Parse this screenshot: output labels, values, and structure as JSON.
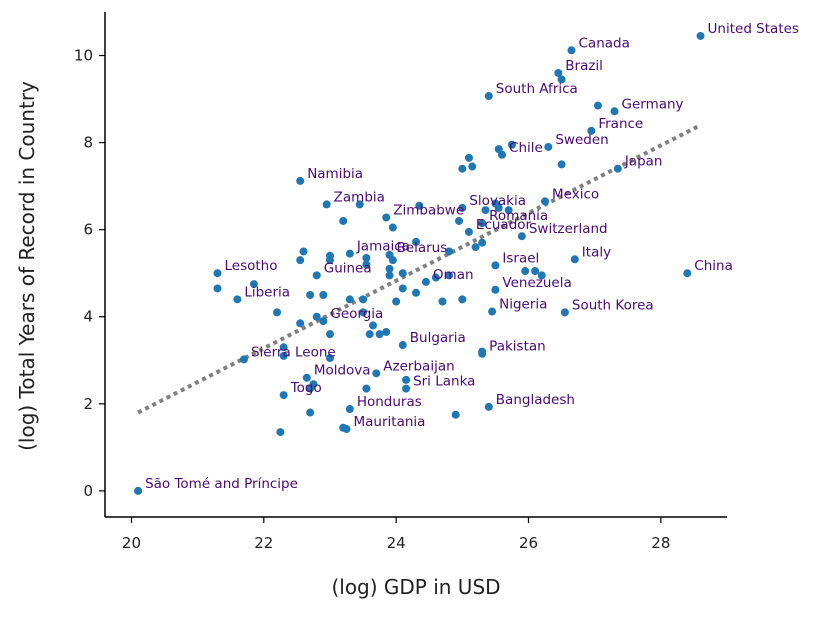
{
  "chart_data": {
    "type": "scatter",
    "xlabel": "(log) GDP in USD",
    "ylabel": "(log) Total Years of Record in Country",
    "xlim": [
      19.6,
      29.0
    ],
    "ylim": [
      -0.6,
      11.0
    ],
    "xticks": [
      20,
      22,
      24,
      26,
      28
    ],
    "yticks": [
      0,
      2,
      4,
      6,
      8,
      10
    ],
    "grid": false,
    "colors": {
      "point": "#1f77b4",
      "label": "#4b0a73",
      "trend": "#808080",
      "axis": "#000000"
    },
    "trend_line": {
      "style": "dotted",
      "x": [
        20.1,
        28.6
      ],
      "y": [
        1.8,
        8.4
      ]
    },
    "points": [
      {
        "x": 28.6,
        "y": 10.45,
        "label": "United States"
      },
      {
        "x": 26.65,
        "y": 10.12,
        "label": "Canada"
      },
      {
        "x": 26.45,
        "y": 9.6,
        "label": "Brazil"
      },
      {
        "x": 25.4,
        "y": 9.07,
        "label": "South Africa"
      },
      {
        "x": 27.3,
        "y": 8.72,
        "label": "Germany"
      },
      {
        "x": 26.95,
        "y": 8.27,
        "label": "France"
      },
      {
        "x": 26.3,
        "y": 7.9,
        "label": "Sweden"
      },
      {
        "x": 25.6,
        "y": 7.72,
        "label": "Chile"
      },
      {
        "x": 27.35,
        "y": 7.4,
        "label": "Japan"
      },
      {
        "x": 22.55,
        "y": 7.12,
        "label": "Namibia"
      },
      {
        "x": 26.25,
        "y": 6.65,
        "label": "Mexico"
      },
      {
        "x": 22.95,
        "y": 6.58,
        "label": "Zambia"
      },
      {
        "x": 25.0,
        "y": 6.5,
        "label": "Slovakia"
      },
      {
        "x": 23.85,
        "y": 6.28,
        "label": "Zimbabwe"
      },
      {
        "x": 25.3,
        "y": 6.15,
        "label": "Romania"
      },
      {
        "x": 25.9,
        "y": 5.85,
        "label": "Switzerland"
      },
      {
        "x": 25.1,
        "y": 5.95,
        "label": "Ecuador"
      },
      {
        "x": 23.3,
        "y": 5.45,
        "label": "Jamaica"
      },
      {
        "x": 23.9,
        "y": 5.42,
        "label": "Belarus"
      },
      {
        "x": 26.7,
        "y": 5.32,
        "label": "Italy"
      },
      {
        "x": 28.4,
        "y": 5.0,
        "label": "China"
      },
      {
        "x": 25.5,
        "y": 5.18,
        "label": "Israel"
      },
      {
        "x": 21.3,
        "y": 5.0,
        "label": "Lesotho"
      },
      {
        "x": 22.8,
        "y": 4.95,
        "label": "Guinea"
      },
      {
        "x": 24.45,
        "y": 4.8,
        "label": "Oman"
      },
      {
        "x": 25.5,
        "y": 4.62,
        "label": "Venezuela"
      },
      {
        "x": 21.6,
        "y": 4.4,
        "label": "Liberia"
      },
      {
        "x": 25.45,
        "y": 4.12,
        "label": "Nigeria"
      },
      {
        "x": 26.55,
        "y": 4.1,
        "label": "South Korea"
      },
      {
        "x": 22.9,
        "y": 3.9,
        "label": "Georgia"
      },
      {
        "x": 24.1,
        "y": 3.35,
        "label": "Bulgaria"
      },
      {
        "x": 25.3,
        "y": 3.15,
        "label": "Pakistan"
      },
      {
        "x": 21.7,
        "y": 3.02,
        "label": "Sierra Leone"
      },
      {
        "x": 23.7,
        "y": 2.7,
        "label": "Azerbaijan"
      },
      {
        "x": 22.65,
        "y": 2.6,
        "label": "Moldova"
      },
      {
        "x": 24.15,
        "y": 2.35,
        "label": "Sri Lanka"
      },
      {
        "x": 22.3,
        "y": 2.2,
        "label": "Togo"
      },
      {
        "x": 25.4,
        "y": 1.93,
        "label": "Bangladesh"
      },
      {
        "x": 23.3,
        "y": 1.88,
        "label": "Honduras"
      },
      {
        "x": 23.25,
        "y": 1.42,
        "label": "Mauritania"
      },
      {
        "x": 20.1,
        "y": 0.0,
        "label": "São Tomé and Príncipe"
      },
      {
        "x": 22.25,
        "y": 1.35
      },
      {
        "x": 22.7,
        "y": 1.8
      },
      {
        "x": 23.2,
        "y": 1.45
      },
      {
        "x": 24.9,
        "y": 1.75
      },
      {
        "x": 24.15,
        "y": 2.55
      },
      {
        "x": 23.55,
        "y": 2.35
      },
      {
        "x": 22.7,
        "y": 2.35
      },
      {
        "x": 22.75,
        "y": 2.45
      },
      {
        "x": 22.3,
        "y": 3.1
      },
      {
        "x": 22.3,
        "y": 3.3
      },
      {
        "x": 23.0,
        "y": 3.05
      },
      {
        "x": 23.6,
        "y": 3.6
      },
      {
        "x": 23.75,
        "y": 3.6
      },
      {
        "x": 23.85,
        "y": 3.65
      },
      {
        "x": 22.55,
        "y": 3.85
      },
      {
        "x": 22.8,
        "y": 4.0
      },
      {
        "x": 23.0,
        "y": 3.6
      },
      {
        "x": 23.5,
        "y": 4.1
      },
      {
        "x": 23.65,
        "y": 3.8
      },
      {
        "x": 22.2,
        "y": 4.1
      },
      {
        "x": 22.7,
        "y": 4.5
      },
      {
        "x": 22.9,
        "y": 4.5
      },
      {
        "x": 23.3,
        "y": 4.4
      },
      {
        "x": 23.5,
        "y": 4.4
      },
      {
        "x": 24.0,
        "y": 4.35
      },
      {
        "x": 24.3,
        "y": 4.55
      },
      {
        "x": 24.7,
        "y": 4.35
      },
      {
        "x": 25.0,
        "y": 4.4
      },
      {
        "x": 24.6,
        "y": 4.9
      },
      {
        "x": 24.8,
        "y": 4.95
      },
      {
        "x": 24.1,
        "y": 4.65
      },
      {
        "x": 23.9,
        "y": 5.1
      },
      {
        "x": 23.9,
        "y": 4.95
      },
      {
        "x": 24.1,
        "y": 5.0
      },
      {
        "x": 23.95,
        "y": 5.3
      },
      {
        "x": 23.55,
        "y": 5.2
      },
      {
        "x": 23.55,
        "y": 5.35
      },
      {
        "x": 23.0,
        "y": 5.3
      },
      {
        "x": 23.0,
        "y": 5.4
      },
      {
        "x": 22.6,
        "y": 5.5
      },
      {
        "x": 22.55,
        "y": 5.3
      },
      {
        "x": 21.3,
        "y": 4.65
      },
      {
        "x": 21.85,
        "y": 4.75
      },
      {
        "x": 24.3,
        "y": 5.72
      },
      {
        "x": 24.8,
        "y": 5.5
      },
      {
        "x": 25.3,
        "y": 5.7
      },
      {
        "x": 25.2,
        "y": 5.6
      },
      {
        "x": 24.95,
        "y": 6.2
      },
      {
        "x": 25.55,
        "y": 6.5
      },
      {
        "x": 25.7,
        "y": 6.45
      },
      {
        "x": 25.5,
        "y": 6.6
      },
      {
        "x": 25.35,
        "y": 6.45
      },
      {
        "x": 23.95,
        "y": 6.05
      },
      {
        "x": 24.35,
        "y": 6.55
      },
      {
        "x": 23.45,
        "y": 6.58
      },
      {
        "x": 23.2,
        "y": 6.2
      },
      {
        "x": 25.0,
        "y": 7.4
      },
      {
        "x": 25.15,
        "y": 7.45
      },
      {
        "x": 25.1,
        "y": 7.65
      },
      {
        "x": 25.55,
        "y": 7.85
      },
      {
        "x": 25.75,
        "y": 7.95
      },
      {
        "x": 26.5,
        "y": 7.5
      },
      {
        "x": 27.05,
        "y": 8.85
      },
      {
        "x": 26.5,
        "y": 9.45
      },
      {
        "x": 25.95,
        "y": 5.05
      },
      {
        "x": 26.1,
        "y": 5.05
      },
      {
        "x": 26.2,
        "y": 4.95
      },
      {
        "x": 25.3,
        "y": 3.2
      }
    ]
  }
}
